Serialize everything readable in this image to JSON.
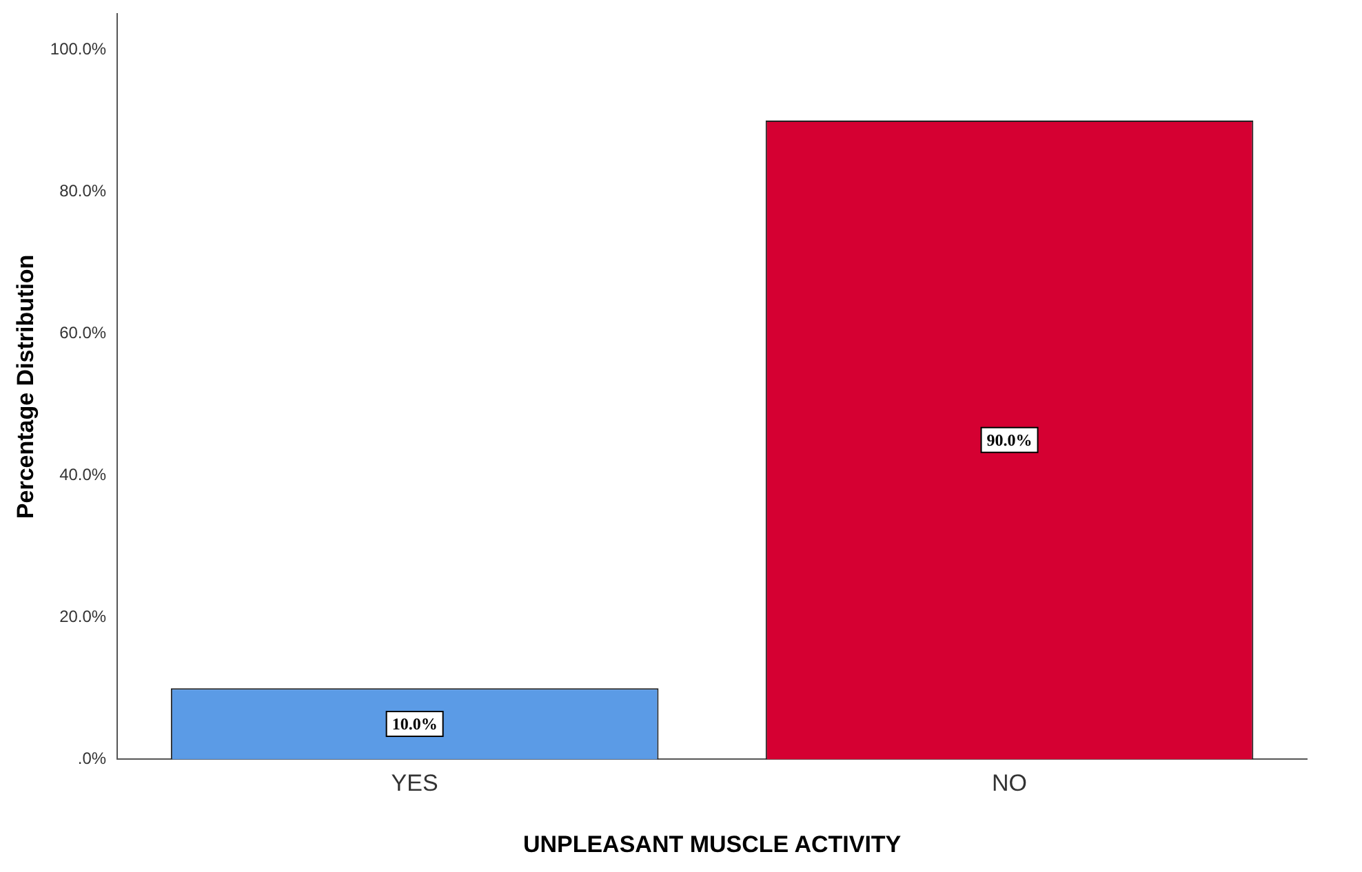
{
  "chart_data": {
    "type": "bar",
    "xlabel": "UNPLEASANT MUSCLE ACTIVITY",
    "ylabel": "Percentage Distribution",
    "categories": [
      "YES",
      "NO"
    ],
    "values": [
      10,
      90
    ],
    "colors": [
      "#5b9be6",
      "#d50032"
    ],
    "value_labels": [
      "10.0%",
      "90.0%"
    ],
    "ylim": [
      0,
      105
    ],
    "yticks": [
      {
        "value": 0,
        "label": ".0%"
      },
      {
        "value": 20,
        "label": "20.0%"
      },
      {
        "value": 40,
        "label": "40.0%"
      },
      {
        "value": 60,
        "label": "60.0%"
      },
      {
        "value": 80,
        "label": "80.0%"
      },
      {
        "value": 100,
        "label": "100.0%"
      }
    ],
    "grid": false,
    "legend": false
  }
}
